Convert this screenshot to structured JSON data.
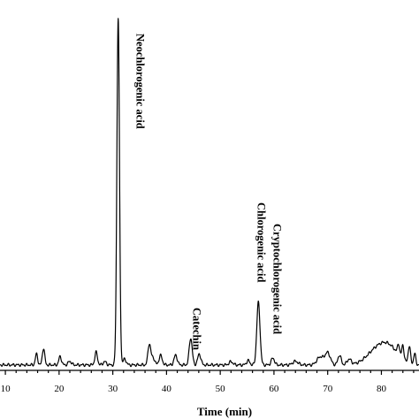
{
  "chart_data": {
    "type": "line",
    "title": "",
    "xlabel": "Time (min)",
    "ylabel": "",
    "xlim": [
      9,
      87
    ],
    "ylim": [
      0,
      100
    ],
    "x_ticks": [
      "10",
      "20",
      "30",
      "40",
      "50",
      "60",
      "70",
      "80"
    ],
    "grid": false,
    "legend": "none",
    "baseline": 1.5,
    "peaks": [
      {
        "x": 15.8,
        "h": 3.0,
        "w": 0.22
      },
      {
        "x": 17.1,
        "h": 4.6,
        "w": 0.22
      },
      {
        "x": 20.2,
        "h": 2.3,
        "w": 0.25
      },
      {
        "x": 22.0,
        "h": 1.0,
        "w": 0.3
      },
      {
        "x": 26.9,
        "h": 3.5,
        "w": 0.25
      },
      {
        "x": 28.5,
        "h": 0.9,
        "w": 0.3
      },
      {
        "x": 31.0,
        "h": 95.5,
        "w": 0.24
      },
      {
        "x": 32.2,
        "h": 1.6,
        "w": 0.3
      },
      {
        "x": 36.8,
        "h": 5.8,
        "w": 0.26
      },
      {
        "x": 37.5,
        "h": 2.0,
        "w": 0.3
      },
      {
        "x": 38.9,
        "h": 2.6,
        "w": 0.3
      },
      {
        "x": 41.7,
        "h": 2.7,
        "w": 0.3
      },
      {
        "x": 44.5,
        "h": 7.4,
        "w": 0.28
      },
      {
        "x": 46.1,
        "h": 3.0,
        "w": 0.3
      },
      {
        "x": 52.0,
        "h": 0.9,
        "w": 0.35
      },
      {
        "x": 55.2,
        "h": 1.2,
        "w": 0.3
      },
      {
        "x": 57.1,
        "h": 17.2,
        "w": 0.3
      },
      {
        "x": 59.8,
        "h": 1.9,
        "w": 0.3
      },
      {
        "x": 64.0,
        "h": 1.0,
        "w": 0.5
      },
      {
        "x": 68.6,
        "h": 2.2,
        "w": 0.6
      },
      {
        "x": 70.0,
        "h": 3.3,
        "w": 0.5
      },
      {
        "x": 72.2,
        "h": 2.7,
        "w": 0.3
      },
      {
        "x": 74.0,
        "h": 1.5,
        "w": 0.4
      },
      {
        "x": 79.5,
        "h": 4.6,
        "w": 2.0
      },
      {
        "x": 81.8,
        "h": 3.0,
        "w": 1.6
      },
      {
        "x": 83.2,
        "h": 3.0,
        "w": 0.2
      },
      {
        "x": 84.0,
        "h": 4.0,
        "w": 0.2
      },
      {
        "x": 85.2,
        "h": 4.8,
        "w": 0.22
      },
      {
        "x": 86.2,
        "h": 3.0,
        "w": 0.2
      }
    ],
    "annotations": [
      {
        "text": "Neochlorogenic acid",
        "x": 31.0
      },
      {
        "text": "Catechin",
        "x": 44.5
      },
      {
        "text": "Chlorogenic acid",
        "x": 57.1
      },
      {
        "text": "Cryptochlorogenic acid",
        "x": 59.8
      }
    ]
  }
}
